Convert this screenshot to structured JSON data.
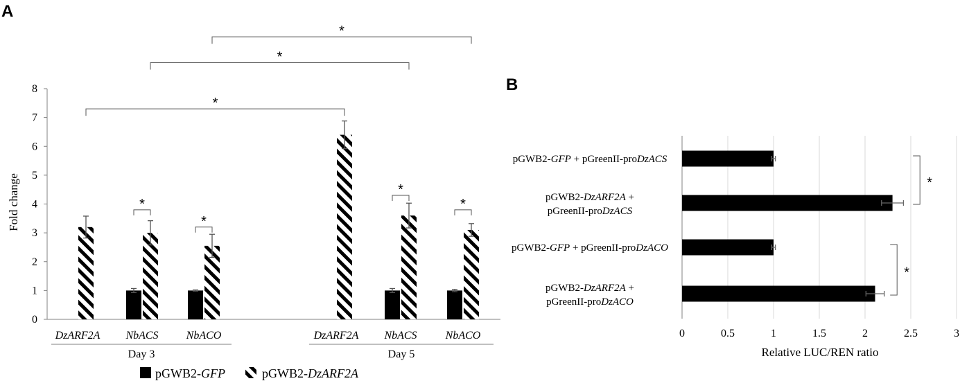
{
  "panels": {
    "a_label": "A",
    "b_label": "B"
  },
  "legend": [
    {
      "prefix": "pGWB2-",
      "italic": "GFP",
      "pattern": "solid"
    },
    {
      "prefix": "pGWB2-",
      "italic": "DzARF2A",
      "pattern": "hatched"
    }
  ],
  "colors": {
    "bar": "#000000",
    "grid": "#d9d9d9",
    "axis": "#808080"
  },
  "significance_symbol": "*",
  "chart_data": [
    {
      "type": "bar",
      "panel": "A",
      "ylabel": "Fold change",
      "ylim": [
        0,
        8
      ],
      "yticks": [
        0,
        1,
        2,
        3,
        4,
        5,
        6,
        7,
        8
      ],
      "groups": [
        {
          "label": "Day 3",
          "categories": [
            "DzARF2A",
            "NbACS",
            "NbACO"
          ]
        },
        {
          "label": "Day 5",
          "categories": [
            "DzARF2A",
            "NbACS",
            "NbACO"
          ]
        }
      ],
      "series": [
        {
          "name": "pGWB2-GFP",
          "pattern": "solid",
          "values": [
            null,
            1.0,
            1.0,
            null,
            1.0,
            1.0
          ],
          "errors": [
            null,
            0.07,
            0.02,
            null,
            0.07,
            0.04
          ]
        },
        {
          "name": "pGWB2-DzARF2A",
          "pattern": "hatched",
          "values": [
            3.2,
            3.0,
            2.55,
            6.4,
            3.6,
            3.1
          ],
          "errors": [
            0.38,
            0.42,
            0.4,
            0.48,
            0.43,
            0.22
          ]
        }
      ],
      "significance": [
        {
          "from": [
            1,
            0
          ],
          "to": [
            1,
            1
          ],
          "y": 3.8,
          "label": "*"
        },
        {
          "from": [
            2,
            0
          ],
          "to": [
            2,
            1
          ],
          "y": 3.2,
          "label": "*"
        },
        {
          "from": [
            4,
            0
          ],
          "to": [
            4,
            1
          ],
          "y": 4.3,
          "label": "*"
        },
        {
          "from": [
            5,
            0
          ],
          "to": [
            5,
            1
          ],
          "y": 3.8,
          "label": "*"
        },
        {
          "from": [
            0,
            1
          ],
          "to": [
            3,
            1
          ],
          "y": 7.3,
          "label": "*"
        },
        {
          "from": [
            1,
            1
          ],
          "to": [
            4,
            1
          ],
          "y": 8.9,
          "label": "*"
        },
        {
          "from": [
            2,
            1
          ],
          "to": [
            5,
            1
          ],
          "y": 9.8,
          "label": "*"
        }
      ]
    },
    {
      "type": "bar",
      "panel": "B",
      "orientation": "horizontal",
      "xlabel": "Relative LUC/REN ratio",
      "xlim": [
        0,
        3
      ],
      "xticks": [
        "0",
        "0.5",
        "1",
        "1.5",
        "2",
        "2.5",
        "3"
      ],
      "grid": true,
      "rows": [
        {
          "lines": [
            [
              [
                "pGWB2-",
                false
              ],
              [
                "GFP",
                true
              ],
              [
                " + pGreenII-pro",
                false
              ],
              [
                "DzACS",
                true
              ]
            ]
          ],
          "value": 1.0,
          "error": 0.02
        },
        {
          "lines": [
            [
              [
                "pGWB2-",
                false
              ],
              [
                "DzARF2A",
                true
              ],
              [
                " +",
                false
              ]
            ],
            [
              [
                "pGreenII-pro",
                false
              ],
              [
                "DzACS",
                true
              ]
            ]
          ],
          "value": 2.3,
          "error": 0.12
        },
        {
          "lines": [
            [
              [
                "pGWB2-",
                false
              ],
              [
                "GFP",
                true
              ],
              [
                " + pGreenII-pro",
                false
              ],
              [
                "DzACO",
                true
              ]
            ]
          ],
          "value": 1.0,
          "error": 0.02
        },
        {
          "lines": [
            [
              [
                "pGWB2-",
                false
              ],
              [
                "DzARF2A",
                true
              ],
              [
                " +",
                false
              ]
            ],
            [
              [
                "pGreenII-pro",
                false
              ],
              [
                "DzACO",
                true
              ]
            ]
          ],
          "value": 2.11,
          "error": 0.1
        }
      ],
      "significance": [
        {
          "rows": [
            0,
            1
          ],
          "x": 2.6,
          "label": "*"
        },
        {
          "rows": [
            2,
            3
          ],
          "x": 2.35,
          "label": "*"
        }
      ]
    }
  ]
}
